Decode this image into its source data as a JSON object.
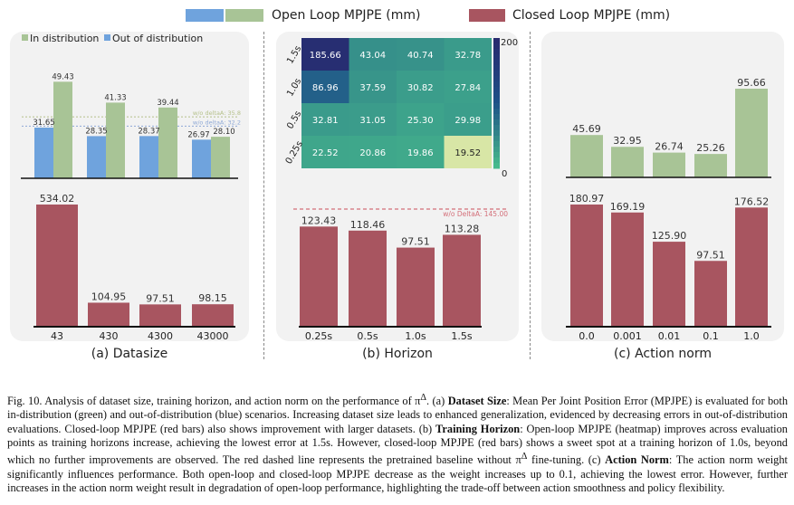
{
  "legend": {
    "open_loop": "Open Loop MPJPE (mm)",
    "closed_loop": "Closed Loop MPJPE (mm)",
    "in_dist": "In distribution",
    "out_dist": "Out of distribution"
  },
  "colors": {
    "green": "#a8c496",
    "blue": "#6fa3dd",
    "red": "#a85560",
    "ref_green": "#b5c08a",
    "ref_blue": "#8fa9d6",
    "ref_red": "#d4707a"
  },
  "subfigs": {
    "a": "(a) Datasize",
    "b": "(b) Horizon",
    "c": "(c) Action norm"
  },
  "chart_data": [
    {
      "type": "bar",
      "title": "(a) Datasize",
      "categories": [
        "43",
        "430",
        "4300",
        "43000"
      ],
      "series": [
        {
          "name": "Out of distribution",
          "values": [
            31.65,
            28.35,
            28.37,
            26.97
          ]
        },
        {
          "name": "In distribution",
          "values": [
            49.43,
            41.33,
            39.44,
            28.1
          ]
        },
        {
          "name": "Closed Loop MPJPE (mm)",
          "values": [
            534.02,
            104.95,
            97.51,
            98.15
          ]
        }
      ],
      "reference_lines": [
        {
          "label": "w/o deltaA: 35.8",
          "value": 35.8
        },
        {
          "label": "w/o deltaA: 32.2",
          "value": 32.2
        }
      ]
    },
    {
      "type": "heatmap",
      "title": "(b) Horizon",
      "rows": [
        "1.5s",
        "1.0s",
        "0.5s",
        "0.25s"
      ],
      "cols": [
        "0.25s",
        "0.5s",
        "1.0s",
        "1.5s"
      ],
      "values": [
        [
          185.66,
          43.04,
          40.74,
          32.78
        ],
        [
          86.96,
          37.59,
          30.82,
          27.84
        ],
        [
          32.81,
          31.05,
          25.3,
          29.98
        ],
        [
          22.52,
          20.86,
          19.86,
          19.52
        ]
      ],
      "colorbar_range": [
        0,
        200
      ]
    },
    {
      "type": "bar",
      "title": "(b) Horizon",
      "categories": [
        "0.25s",
        "0.5s",
        "1.0s",
        "1.5s"
      ],
      "series": [
        {
          "name": "Closed Loop MPJPE (mm)",
          "values": [
            123.43,
            118.46,
            97.51,
            113.28
          ]
        }
      ],
      "reference_lines": [
        {
          "label": "w/o DeltaA: 145.00",
          "value": 145.0
        }
      ]
    },
    {
      "type": "bar",
      "title": "(c) Action norm",
      "categories": [
        "0.0",
        "0.001",
        "0.01",
        "0.1",
        "1.0"
      ],
      "series": [
        {
          "name": "Open Loop MPJPE (mm)",
          "values": [
            45.69,
            32.95,
            26.74,
            25.26,
            95.66
          ]
        },
        {
          "name": "Closed Loop MPJPE (mm)",
          "values": [
            180.97,
            169.19,
            125.9,
            97.51,
            176.52
          ]
        }
      ]
    }
  ],
  "caption": {
    "p1": "Fig. 10.   Analysis of dataset size, training horizon, and action norm on the performance of π",
    "sup": "Δ",
    "p2": ". (a) ",
    "b1": "Dataset Size",
    "p3": ": Mean Per Joint Position Error (MPJPE) is evaluated for both in-distribution (green) and out-of-distribution (blue) scenarios. Increasing dataset size leads to enhanced generalization, evidenced by decreasing errors in out-of-distribution evaluations. Closed-loop MPJPE (red bars) also shows improvement with larger datasets. (b) ",
    "b2": "Training Horizon",
    "p4": ": Open-loop MPJPE (heatmap) improves across evaluation points as training horizons increase, achieving the lowest error at 1.5s. However, closed-loop MPJPE (red bars) shows a sweet spot at a training horizon of 1.0s, beyond which no further improvements are observed. The red dashed line represents the pretrained baseline without π",
    "sup2": "Δ",
    "p5": " fine-tuning. (c) ",
    "b3": "Action Norm",
    "p6": ": The action norm weight significantly influences performance. Both open-loop and closed-loop MPJPE decrease as the weight increases up to 0.1, achieving the lowest error. However, further increases in the action norm weight result in degradation of open-loop performance, highlighting the trade-off between action smoothness and policy flexibility."
  }
}
